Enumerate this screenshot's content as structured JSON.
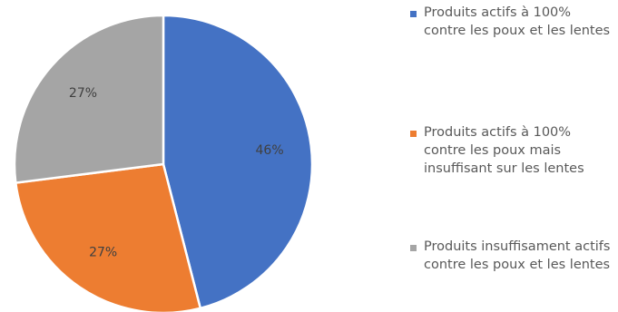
{
  "chart_data": {
    "type": "pie",
    "slices": [
      {
        "label": "Produits actifs à 100% contre les poux et les lentes",
        "value": 46,
        "value_label": "46%",
        "color": "#4472C4"
      },
      {
        "label": "Produits actifs à 100% contre les poux mais insuffisant sur les lentes",
        "value": 27,
        "value_label": "27%",
        "color": "#ED7D31"
      },
      {
        "label": "Produits insuffisament actifs contre les poux et les lentes",
        "value": 27,
        "value_label": "27%",
        "color": "#A5A5A5"
      }
    ],
    "start_angle_deg": 0,
    "direction": "clockwise",
    "legend_position": "right"
  }
}
